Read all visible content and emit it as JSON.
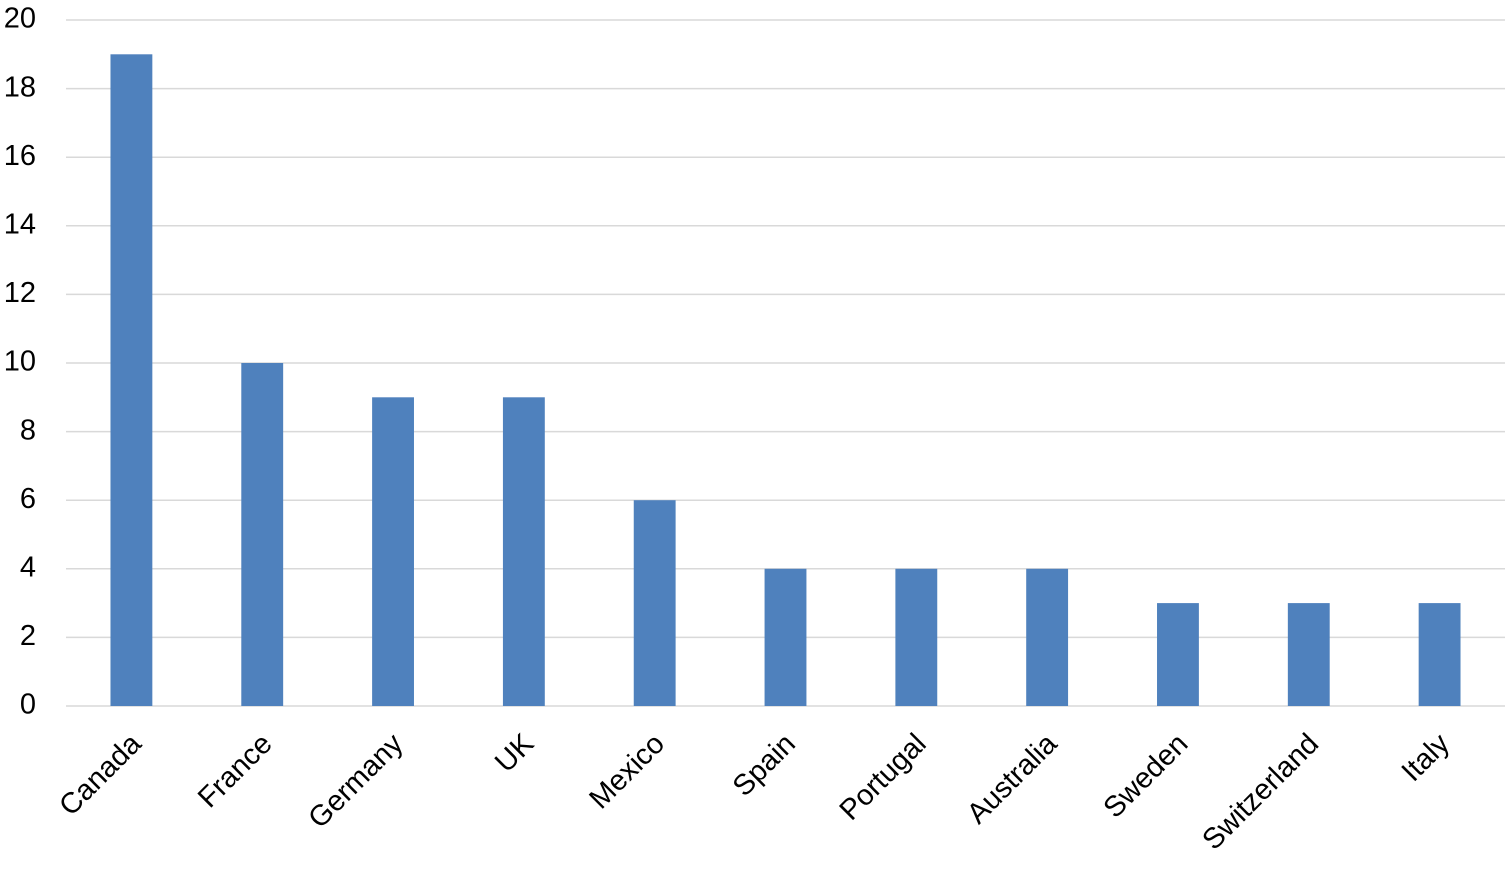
{
  "chart_data": {
    "type": "bar",
    "categories": [
      "Canada",
      "France",
      "Germany",
      "UK",
      "Mexico",
      "Spain",
      "Portugal",
      "Australia",
      "Sweden",
      "Switzerland",
      "Italy"
    ],
    "values": [
      19,
      10,
      9,
      9,
      6,
      4,
      4,
      4,
      3,
      3,
      3
    ],
    "color": "#4f81bd",
    "ylim": [
      0,
      20
    ],
    "yticks": [
      0,
      2,
      4,
      6,
      8,
      10,
      12,
      14,
      16,
      18,
      20
    ],
    "grid": true
  }
}
